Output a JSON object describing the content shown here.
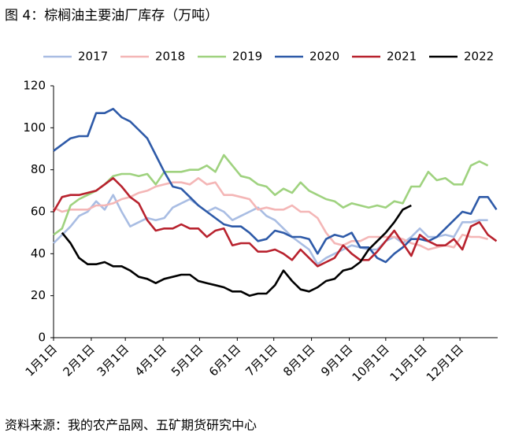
{
  "chart_data": {
    "type": "line",
    "title": "图 4：棕榈油主要油厂库存（万吨）",
    "source": "资料来源：我的农产品网、五矿期货研究中心",
    "x": [
      0,
      7,
      14,
      21,
      28,
      35,
      42,
      49,
      56,
      63,
      70,
      77,
      84,
      91,
      98,
      105,
      112,
      119,
      126,
      133,
      140,
      147,
      154,
      161,
      168,
      175,
      182,
      189,
      196,
      203,
      210,
      217,
      224,
      231,
      238,
      245,
      252,
      259,
      266,
      273,
      280,
      287,
      294,
      301,
      308,
      315,
      322,
      329,
      336,
      343,
      350,
      357,
      364
    ],
    "xlim": [
      0,
      365
    ],
    "xticks": [
      {
        "value": 0,
        "label": "1月1日"
      },
      {
        "value": 31,
        "label": "2月1日"
      },
      {
        "value": 59,
        "label": "3月1日"
      },
      {
        "value": 90,
        "label": "4月1日"
      },
      {
        "value": 120,
        "label": "5月1日"
      },
      {
        "value": 151,
        "label": "6月1日"
      },
      {
        "value": 181,
        "label": "7月1日"
      },
      {
        "value": 212,
        "label": "8月1日"
      },
      {
        "value": 243,
        "label": "9月1日"
      },
      {
        "value": 273,
        "label": "10月1日"
      },
      {
        "value": 304,
        "label": "11月1日"
      },
      {
        "value": 334,
        "label": "12月1日"
      }
    ],
    "ylim": [
      0,
      120
    ],
    "yticks": [
      0,
      20,
      40,
      60,
      80,
      100,
      120
    ],
    "legend": "top",
    "series": [
      {
        "name": "2017",
        "color": "#a9bde3",
        "values": [
          45,
          49,
          53,
          58,
          60,
          65,
          61,
          68,
          60,
          53,
          55,
          57,
          56,
          57,
          62,
          64,
          66,
          63,
          60,
          62,
          60,
          56,
          58,
          60,
          62,
          58,
          56,
          52,
          48,
          45,
          42,
          35,
          38,
          40,
          42,
          44,
          43,
          42,
          42,
          46,
          48,
          45,
          48,
          52,
          48,
          48,
          49,
          48,
          55,
          55,
          56,
          56,
          null
        ]
      },
      {
        "name": "2018",
        "color": "#f4b6b6",
        "values": [
          62,
          60,
          61,
          61,
          61,
          63,
          63,
          64,
          66,
          67,
          69,
          70,
          72,
          73,
          74,
          74,
          73,
          76,
          73,
          74,
          68,
          68,
          67,
          66,
          61,
          62,
          61,
          61,
          63,
          60,
          60,
          57,
          50,
          45,
          44,
          46,
          46,
          48,
          48,
          48,
          48,
          47,
          45,
          44,
          42,
          43,
          44,
          43,
          49,
          48,
          48,
          47,
          null
        ]
      },
      {
        "name": "2019",
        "color": "#9fd27f",
        "values": [
          49,
          52,
          63,
          66,
          68,
          70,
          73,
          77,
          78,
          78,
          77,
          78,
          73,
          79,
          79,
          79,
          80,
          80,
          82,
          79,
          87,
          82,
          77,
          76,
          73,
          72,
          68,
          71,
          69,
          74,
          70,
          68,
          66,
          65,
          62,
          64,
          63,
          62,
          63,
          62,
          65,
          64,
          72,
          72,
          79,
          75,
          76,
          73,
          73,
          82,
          84,
          82,
          null
        ]
      },
      {
        "name": "2020",
        "color": "#2e5aa8",
        "values": [
          89,
          92,
          95,
          96,
          96,
          107,
          107,
          109,
          105,
          103,
          99,
          95,
          87,
          79,
          72,
          71,
          67,
          63,
          60,
          57,
          54,
          53,
          53,
          50,
          46,
          47,
          51,
          50,
          48,
          48,
          47,
          40,
          47,
          49,
          48,
          50,
          43,
          43,
          38,
          36,
          40,
          43,
          47,
          47,
          46,
          48,
          52,
          56,
          60,
          59,
          67,
          67,
          61
        ]
      },
      {
        "name": "2021",
        "color": "#b8222e",
        "values": [
          60,
          67,
          68,
          68,
          69,
          70,
          73,
          76,
          72,
          67,
          64,
          56,
          51,
          52,
          52,
          54,
          52,
          52,
          48,
          51,
          52,
          44,
          45,
          45,
          41,
          41,
          42,
          40,
          37,
          42,
          38,
          34,
          36,
          38,
          44,
          40,
          37,
          37,
          41,
          46,
          51,
          45,
          39,
          49,
          46,
          44,
          44,
          47,
          42,
          53,
          55,
          49,
          46
        ]
      },
      {
        "name": "2022",
        "color": "#000000",
        "values": [
          null,
          50,
          45,
          38,
          35,
          35,
          36,
          34,
          34,
          32,
          29,
          28,
          26,
          28,
          29,
          30,
          30,
          27,
          26,
          25,
          24,
          22,
          22,
          20,
          21,
          21,
          25,
          32,
          27,
          23,
          22,
          24,
          27,
          28,
          32,
          33,
          36,
          42,
          46,
          50,
          55,
          61,
          63,
          null,
          null,
          null,
          null,
          null,
          null,
          null,
          null,
          null,
          null
        ]
      }
    ]
  }
}
